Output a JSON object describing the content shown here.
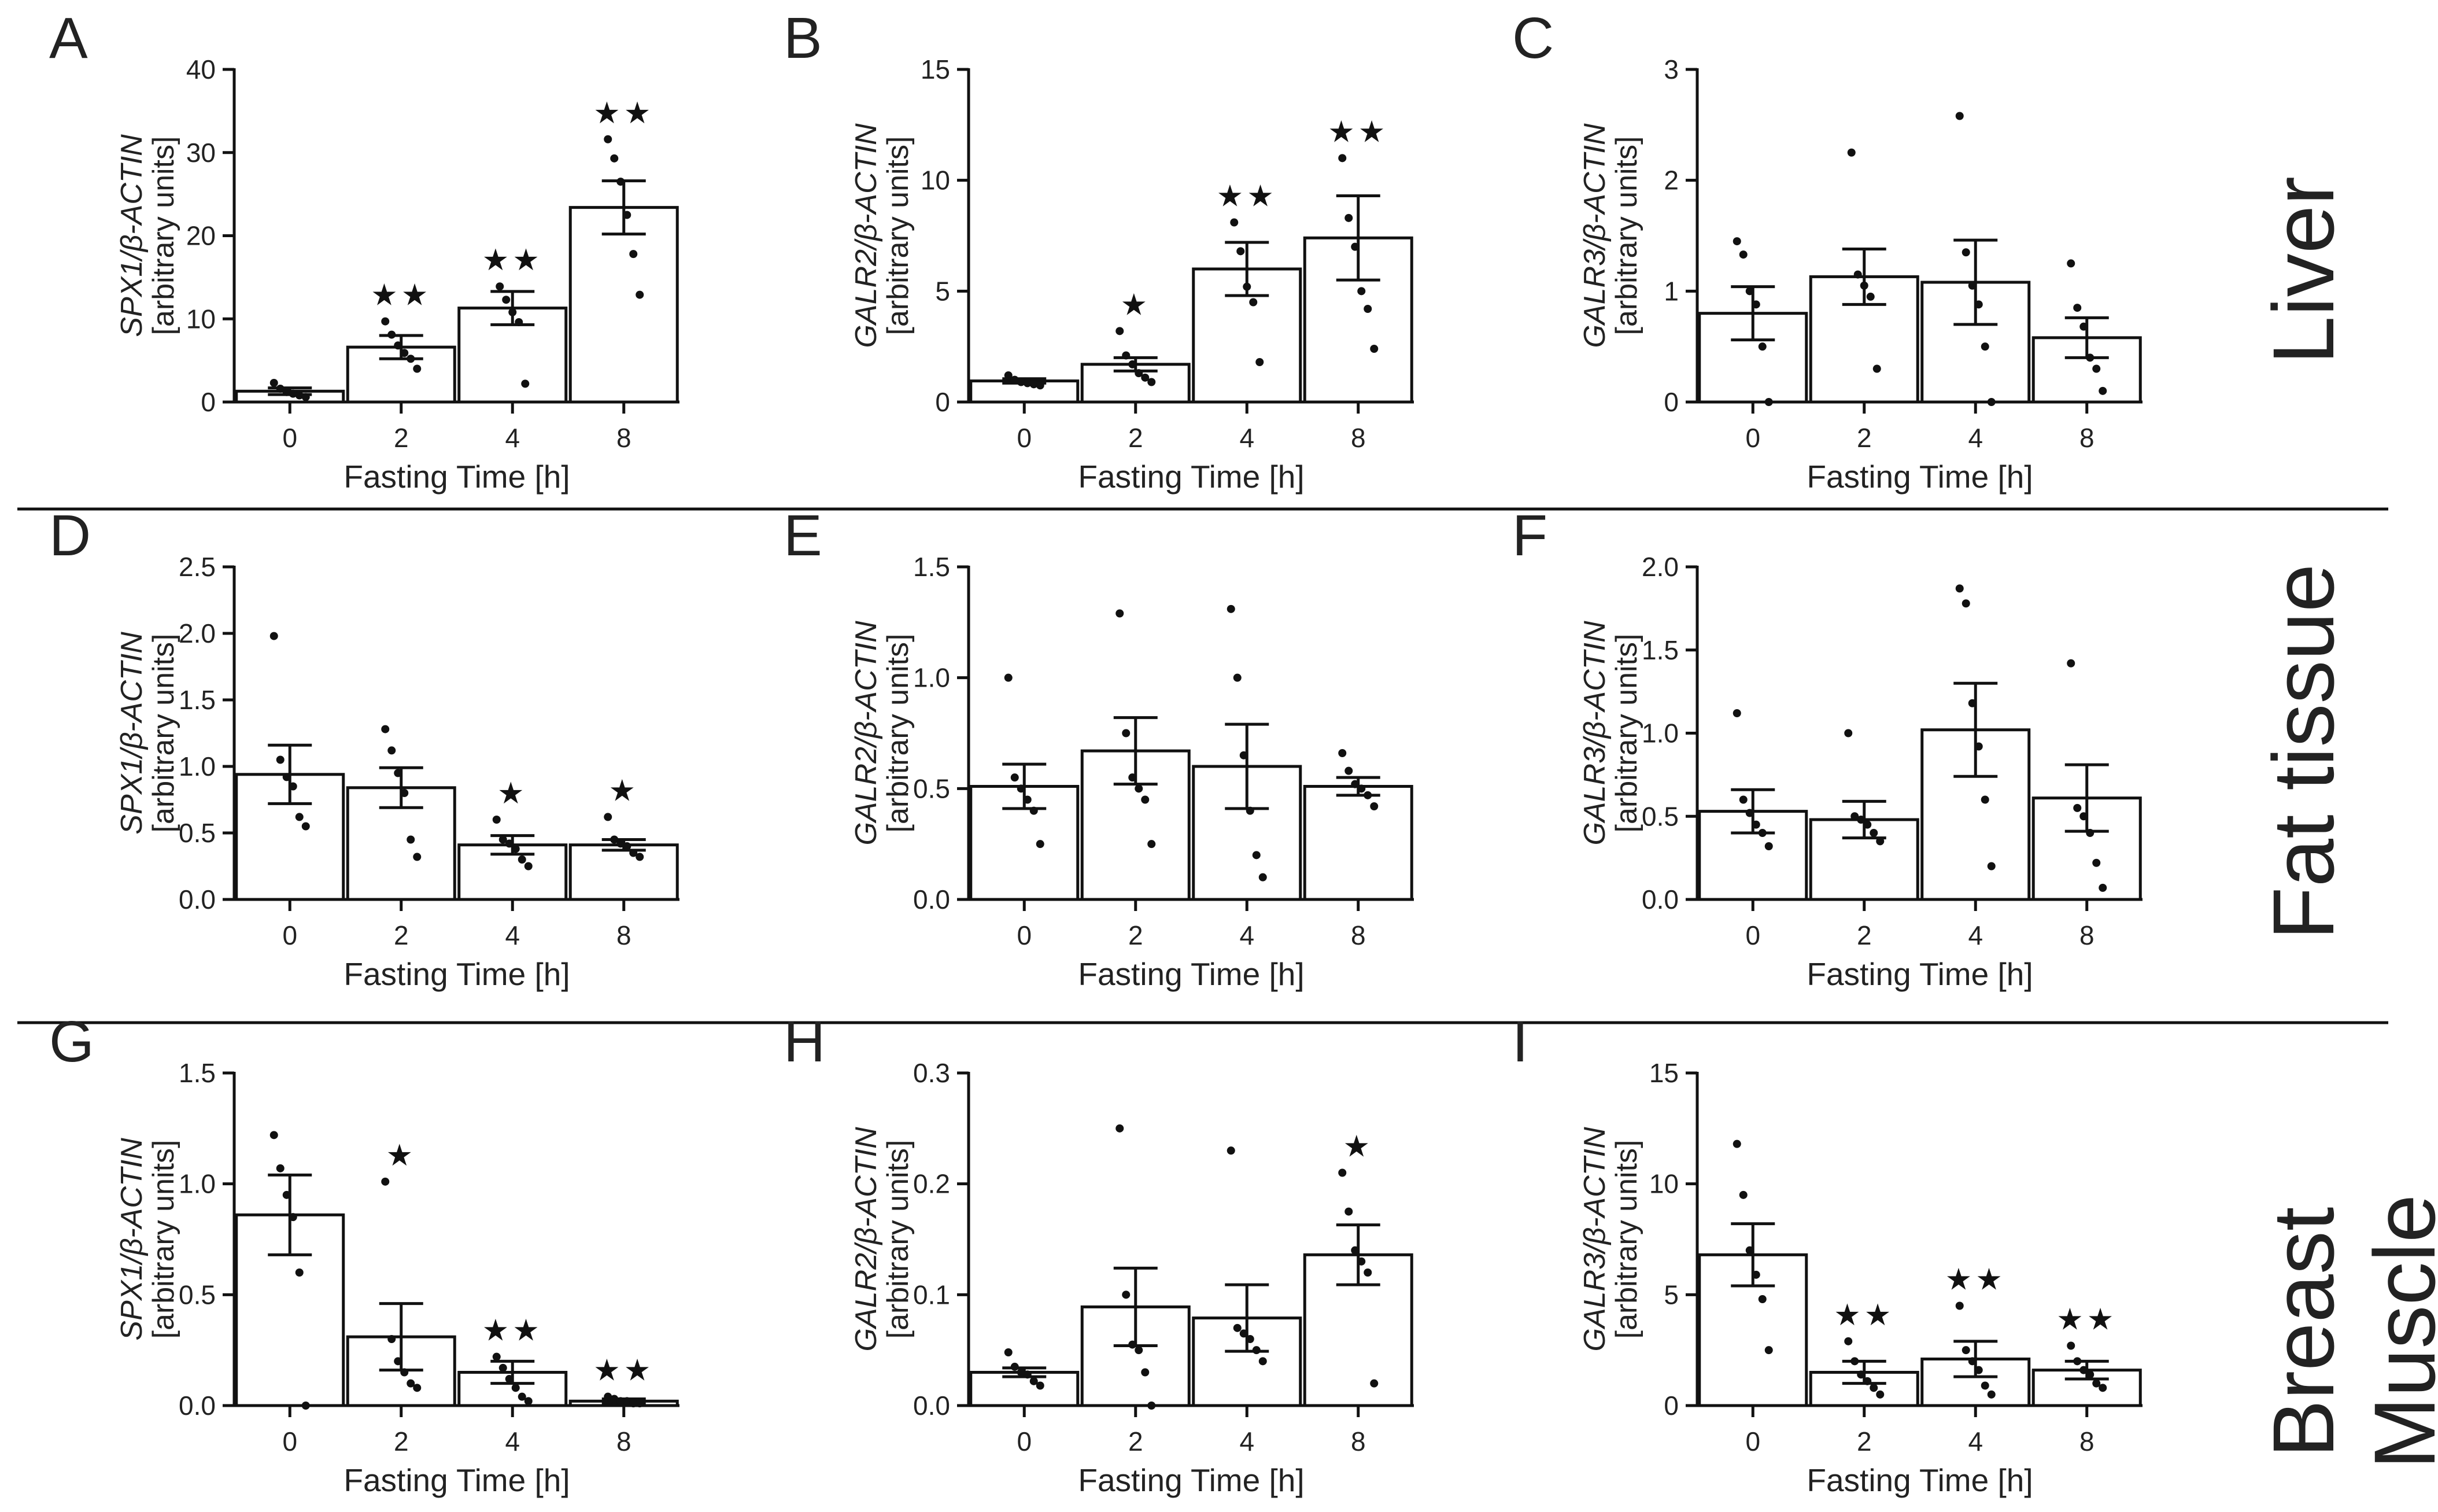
{
  "figure": {
    "row_labels": [
      "Liver",
      "Fat tissue",
      "Breast",
      "Muscle"
    ]
  },
  "chart_data": [
    {
      "panel": "A",
      "type": "bar",
      "title": "",
      "xlabel": "Fasting Time [h]",
      "ylabel_gene": "SPX1/β-ACTIN",
      "ylabel_units": "[arbitrary units]",
      "categories": [
        "0",
        "2",
        "4",
        "8"
      ],
      "values": [
        1.3,
        6.6,
        11.3,
        23.4
      ],
      "sem": [
        0.4,
        1.4,
        2.0,
        3.2
      ],
      "points": [
        [
          2.3,
          1.6,
          1.2,
          1.0,
          0.8,
          0.6
        ],
        [
          9.7,
          8.1,
          6.8,
          5.9,
          5.2,
          4.0
        ],
        [
          13.9,
          12.3,
          10.8,
          9.6,
          2.2
        ],
        [
          31.6,
          29.3,
          26.5,
          22.5,
          17.8,
          12.9
        ]
      ],
      "annotations": [
        "",
        "★★",
        "★★",
        "★★"
      ],
      "ylim": [
        0,
        40
      ],
      "yticks": [
        0,
        10,
        20,
        30,
        40
      ],
      "ytick_labels": [
        "0",
        "10",
        "20",
        "30",
        "40"
      ]
    },
    {
      "panel": "B",
      "type": "bar",
      "title": "",
      "xlabel": "Fasting Time [h]",
      "ylabel_gene": "GALR2/β-ACTIN",
      "ylabel_units": "[arbitrary units]",
      "categories": [
        "0",
        "2",
        "4",
        "8"
      ],
      "values": [
        0.95,
        1.7,
        6.0,
        7.4
      ],
      "sem": [
        0.1,
        0.3,
        1.2,
        1.9
      ],
      "points": [
        [
          1.2,
          1.0,
          0.9,
          0.85,
          0.8,
          0.75
        ],
        [
          3.2,
          2.1,
          1.7,
          1.3,
          1.1,
          0.9
        ],
        [
          8.1,
          6.8,
          5.2,
          4.5,
          1.8
        ],
        [
          11.0,
          8.3,
          7.0,
          5.0,
          4.2,
          2.4
        ]
      ],
      "annotations": [
        "",
        "★",
        "★★",
        "★★"
      ],
      "ylim": [
        0,
        15
      ],
      "yticks": [
        0,
        5,
        10,
        15
      ],
      "ytick_labels": [
        "0",
        "5",
        "10",
        "15"
      ]
    },
    {
      "panel": "C",
      "type": "bar",
      "title": "",
      "xlabel": "Fasting Time [h]",
      "ylabel_gene": "GALR3/β-ACTIN",
      "ylabel_units": "[arbitrary units]",
      "categories": [
        "0",
        "2",
        "4",
        "8"
      ],
      "values": [
        0.8,
        1.13,
        1.08,
        0.58
      ],
      "sem": [
        0.24,
        0.25,
        0.38,
        0.18
      ],
      "points": [
        [
          1.45,
          1.33,
          1.0,
          0.88,
          0.5,
          0.0
        ],
        [
          2.25,
          1.15,
          1.05,
          0.95,
          0.3
        ],
        [
          2.58,
          1.35,
          1.05,
          0.88,
          0.5,
          0.0
        ],
        [
          1.25,
          0.85,
          0.68,
          0.4,
          0.3,
          0.1
        ]
      ],
      "annotations": [
        "",
        "",
        "",
        ""
      ],
      "ylim": [
        0,
        3
      ],
      "yticks": [
        0,
        1,
        2,
        3
      ],
      "ytick_labels": [
        "0",
        "1",
        "2",
        "3"
      ]
    },
    {
      "panel": "D",
      "type": "bar",
      "title": "",
      "xlabel": "Fasting Time [h]",
      "ylabel_gene": "SPX1/β-ACTIN",
      "ylabel_units": "[arbitrary units]",
      "categories": [
        "0",
        "2",
        "4",
        "8"
      ],
      "values": [
        0.94,
        0.84,
        0.41,
        0.41
      ],
      "sem": [
        0.22,
        0.15,
        0.07,
        0.04
      ],
      "points": [
        [
          1.98,
          1.05,
          0.92,
          0.85,
          0.62,
          0.55
        ],
        [
          1.28,
          1.12,
          0.95,
          0.8,
          0.45,
          0.32
        ],
        [
          0.6,
          0.45,
          0.42,
          0.38,
          0.3,
          0.25
        ],
        [
          0.62,
          0.45,
          0.42,
          0.4,
          0.35,
          0.32
        ]
      ],
      "annotations": [
        "",
        "",
        "★",
        "★"
      ],
      "ylim": [
        0,
        2.5
      ],
      "yticks": [
        0,
        0.5,
        1.0,
        1.5,
        2.0,
        2.5
      ],
      "ytick_labels": [
        "0.0",
        "0.5",
        "1.0",
        "1.5",
        "2.0",
        "2.5"
      ]
    },
    {
      "panel": "E",
      "type": "bar",
      "title": "",
      "xlabel": "Fasting Time [h]",
      "ylabel_gene": "GALR2/β-ACTIN",
      "ylabel_units": "[arbitrary units]",
      "categories": [
        "0",
        "2",
        "4",
        "8"
      ],
      "values": [
        0.51,
        0.67,
        0.6,
        0.51
      ],
      "sem": [
        0.1,
        0.15,
        0.19,
        0.04
      ],
      "points": [
        [
          1.0,
          0.55,
          0.5,
          0.45,
          0.4,
          0.25
        ],
        [
          1.29,
          0.75,
          0.55,
          0.5,
          0.45,
          0.25
        ],
        [
          1.31,
          1.0,
          0.65,
          0.4,
          0.2,
          0.1
        ],
        [
          0.66,
          0.58,
          0.52,
          0.5,
          0.47,
          0.42
        ]
      ],
      "annotations": [
        "",
        "",
        "",
        ""
      ],
      "ylim": [
        0,
        1.5
      ],
      "yticks": [
        0,
        0.5,
        1.0,
        1.5
      ],
      "ytick_labels": [
        "0.0",
        "0.5",
        "1.0",
        "1.5"
      ]
    },
    {
      "panel": "F",
      "type": "bar",
      "title": "",
      "xlabel": "Fasting Time [h]",
      "ylabel_gene": "GALR3/β-ACTIN",
      "ylabel_units": "[arbitrary units]",
      "categories": [
        "0",
        "2",
        "4",
        "8"
      ],
      "values": [
        0.53,
        0.48,
        1.02,
        0.61
      ],
      "sem": [
        0.13,
        0.11,
        0.28,
        0.2
      ],
      "points": [
        [
          1.12,
          0.6,
          0.52,
          0.45,
          0.4,
          0.32
        ],
        [
          1.0,
          0.5,
          0.48,
          0.45,
          0.4,
          0.35
        ],
        [
          1.87,
          1.78,
          1.18,
          0.92,
          0.6,
          0.2
        ],
        [
          1.42,
          0.55,
          0.5,
          0.4,
          0.22,
          0.07
        ]
      ],
      "annotations": [
        "",
        "",
        "",
        ""
      ],
      "ylim": [
        0,
        2.0
      ],
      "yticks": [
        0,
        0.5,
        1.0,
        1.5,
        2.0
      ],
      "ytick_labels": [
        "0.0",
        "0.5",
        "1.0",
        "1.5",
        "2.0"
      ]
    },
    {
      "panel": "G",
      "type": "bar",
      "title": "",
      "xlabel": "Fasting Time [h]",
      "ylabel_gene": "SPX1/β-ACTIN",
      "ylabel_units": "[arbitrary units]",
      "categories": [
        "0",
        "2",
        "4",
        "8"
      ],
      "values": [
        0.86,
        0.31,
        0.15,
        0.02
      ],
      "sem": [
        0.18,
        0.15,
        0.05,
        0.01
      ],
      "points": [
        [
          1.22,
          1.07,
          0.95,
          0.85,
          0.6,
          0.0
        ],
        [
          1.01,
          0.3,
          0.2,
          0.15,
          0.1,
          0.08
        ],
        [
          0.22,
          0.17,
          0.12,
          0.08,
          0.04,
          0.02
        ],
        [
          0.04,
          0.03,
          0.02,
          0.02,
          0.01,
          0.01
        ]
      ],
      "annotations": [
        "",
        "★",
        "★★",
        "★★"
      ],
      "ylim": [
        0,
        1.5
      ],
      "yticks": [
        0,
        0.5,
        1.0,
        1.5
      ],
      "ytick_labels": [
        "0.0",
        "0.5",
        "1.0",
        "1.5"
      ]
    },
    {
      "panel": "H",
      "type": "bar",
      "title": "",
      "xlabel": "Fasting Time [h]",
      "ylabel_gene": "GALR2/β-ACTIN",
      "ylabel_units": "[arbitrary units]",
      "categories": [
        "0",
        "2",
        "4",
        "8"
      ],
      "values": [
        0.03,
        0.089,
        0.079,
        0.136
      ],
      "sem": [
        0.004,
        0.035,
        0.03,
        0.027
      ],
      "points": [
        [
          0.048,
          0.035,
          0.03,
          0.028,
          0.022,
          0.018
        ],
        [
          0.25,
          0.1,
          0.055,
          0.05,
          0.03,
          0.0
        ],
        [
          0.23,
          0.07,
          0.065,
          0.06,
          0.05,
          0.04
        ],
        [
          0.21,
          0.175,
          0.14,
          0.13,
          0.12,
          0.02
        ]
      ],
      "annotations": [
        "",
        "",
        "",
        "★"
      ],
      "ylim": [
        0,
        0.3
      ],
      "yticks": [
        0,
        0.1,
        0.2,
        0.3
      ],
      "ytick_labels": [
        "0.0",
        "0.1",
        "0.2",
        "0.3"
      ]
    },
    {
      "panel": "I",
      "type": "bar",
      "title": "",
      "xlabel": "Fasting Time [h]",
      "ylabel_gene": "GALR3/β-ACTIN",
      "ylabel_units": "[arbitrary units]",
      "categories": [
        "0",
        "2",
        "4",
        "8"
      ],
      "values": [
        6.8,
        1.5,
        2.1,
        1.6
      ],
      "sem": [
        1.4,
        0.5,
        0.8,
        0.4
      ],
      "points": [
        [
          11.8,
          9.5,
          7.0,
          5.9,
          4.8,
          2.5
        ],
        [
          2.9,
          2.0,
          1.4,
          1.1,
          0.8,
          0.5
        ],
        [
          4.5,
          2.5,
          2.0,
          1.6,
          0.9,
          0.5
        ],
        [
          2.7,
          2.0,
          1.6,
          1.4,
          1.0,
          0.8
        ]
      ],
      "annotations": [
        "",
        "★★",
        "★★",
        "★★"
      ],
      "ylim": [
        0,
        15
      ],
      "yticks": [
        0,
        5,
        10,
        15
      ],
      "ytick_labels": [
        "0",
        "5",
        "10",
        "15"
      ]
    }
  ]
}
